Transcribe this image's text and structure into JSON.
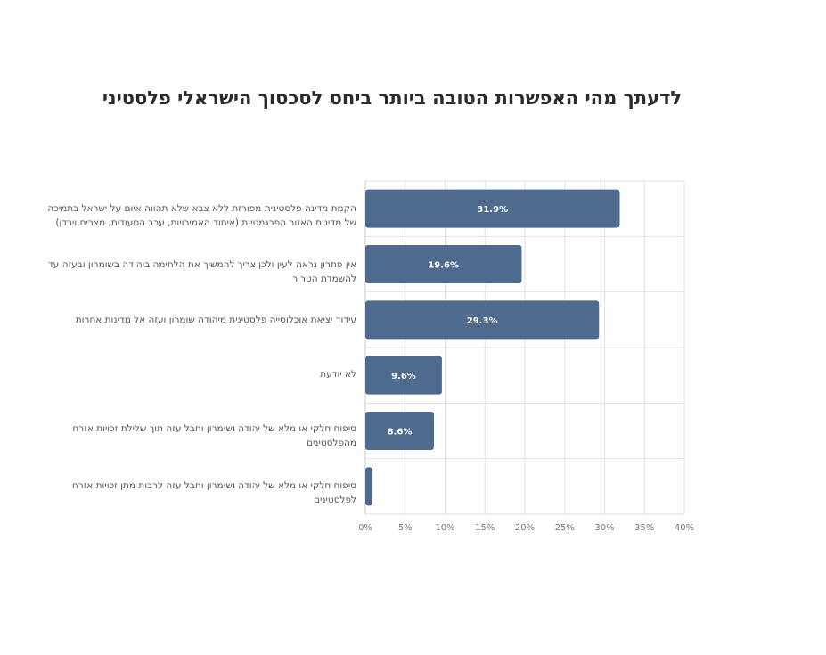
{
  "chart_data": {
    "type": "bar",
    "orientation": "horizontal",
    "title": "לדעתך מהי האפשרות הטובה ביותר ביחס לסכסוך הישראלי פלסטיני",
    "categories": [
      "הקמת מדינה פלסטינית מפורזת ללא צבא שלא תהווה איום על ישראל בתמיכה של מדינות האזור הפרגמטיות (איחוד האמירויות, ערב הסעודית, מצרים וירדן)",
      "אין פתרון נראה לעין ולכן צריך להמשיך את הלחימה ביהודה בשומרון ובעזה עד להשמדת הטרור",
      "עידוד יציאת אוכלוסייה פלסטינית מיהודה שומרון ועזה אל מדינות אחרות",
      "לא יודעת",
      "סיפוח חלקי או מלא של יהודה ושומרון וחבל עזה תוך שלילת זכויות אזרח מהפלסטינים",
      "סיפוח חלקי או מלא של יהודה ושומרון וחבל עזה לרבות מתן זכויות אזרח לפלסטינים"
    ],
    "values": [
      31.9,
      19.6,
      29.3,
      9.6,
      8.6,
      0.9
    ],
    "data_labels": [
      "31.9%",
      "19.6%",
      "29.3%",
      "9.6%",
      "8.6%",
      ""
    ],
    "xlim": [
      0,
      40
    ],
    "xticks": [
      0,
      5,
      10,
      15,
      20,
      25,
      30,
      35,
      40
    ],
    "xtick_labels": [
      "0%",
      "5%",
      "10%",
      "15%",
      "20%",
      "25%",
      "30%",
      "35%",
      "40%"
    ],
    "grid": true,
    "bar_color": "#4e6a8e",
    "label_color": "#ffffff"
  }
}
